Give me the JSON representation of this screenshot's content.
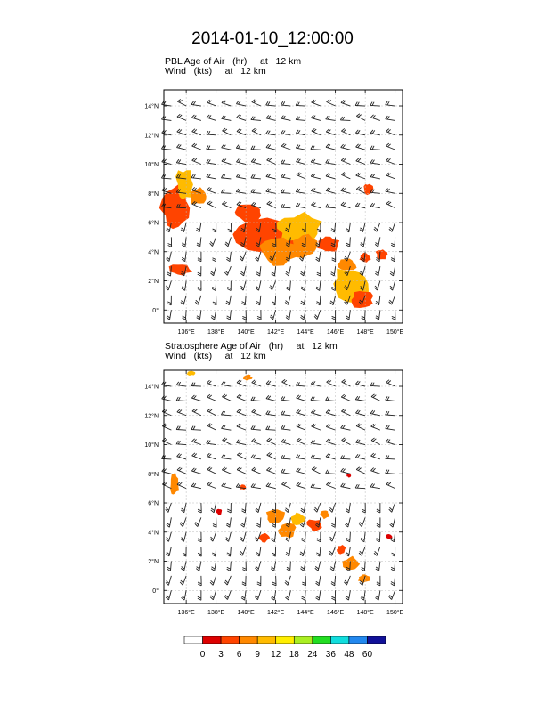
{
  "figure": {
    "title": "2014-01-10_12:00:00"
  },
  "panels": [
    {
      "title_line1": "PBL Age of Air   (hr)     at   12 km",
      "title_line2": "Wind   (kts)     at   12 km"
    },
    {
      "title_line1": "Stratosphere Age of Air   (hr)     at   12 km",
      "title_line2": "Wind   (kts)     at   12 km"
    }
  ],
  "chart_data": {
    "type": "heatmap",
    "x_axis": {
      "range": [
        134.5,
        150.5
      ],
      "ticks": [
        136,
        138,
        140,
        142,
        144,
        146,
        148,
        150
      ],
      "tick_labels": [
        "136°E",
        "138°E",
        "140°E",
        "142°E",
        "144°E",
        "146°E",
        "148°E",
        "150°E"
      ]
    },
    "y_axis": {
      "range": [
        -0.9,
        15.1
      ],
      "ticks": [
        0,
        2,
        4,
        6,
        8,
        10,
        12,
        14
      ],
      "tick_labels": [
        "0°",
        "2°N",
        "4°N",
        "6°N",
        "8°N",
        "10°N",
        "12°N",
        "14°N"
      ]
    },
    "colorbar": {
      "levels": [
        "0",
        "3",
        "6",
        "9",
        "12",
        "18",
        "24",
        "36",
        "48",
        "60"
      ],
      "colors": [
        "#ffffff",
        "#dd0000",
        "#ff4400",
        "#ff8800",
        "#ffbb00",
        "#ffee00",
        "#aaee22",
        "#22dd22",
        "#11dddd",
        "#2288ee",
        "#111199"
      ]
    },
    "wind_field": {
      "units": "kts",
      "lon_step": 1.0,
      "lat_step": 1.0,
      "regime_boundary_lat": 6.5,
      "north_direction_deg": 285,
      "south_direction_deg": 190
    },
    "pbl_age_regions": [
      {
        "lon": 135.3,
        "lat": 7.0,
        "rlon": 1.0,
        "rlat": 1.6,
        "level": 2
      },
      {
        "lon": 135.9,
        "lat": 8.6,
        "rlon": 0.6,
        "rlat": 1.1,
        "level": 4
      },
      {
        "lon": 136.8,
        "lat": 7.8,
        "rlon": 0.6,
        "rlat": 0.6,
        "level": 3
      },
      {
        "lon": 135.6,
        "lat": 2.8,
        "rlon": 0.8,
        "rlat": 0.4,
        "level": 2
      },
      {
        "lon": 140.2,
        "lat": 6.7,
        "rlon": 1.0,
        "rlat": 0.6,
        "level": 2
      },
      {
        "lon": 142.0,
        "lat": 5.2,
        "rlon": 2.6,
        "rlat": 1.2,
        "level": 2
      },
      {
        "lon": 143.5,
        "lat": 5.6,
        "rlon": 1.6,
        "rlat": 1.0,
        "level": 4
      },
      {
        "lon": 142.2,
        "lat": 4.0,
        "rlon": 1.4,
        "rlat": 0.9,
        "level": 3
      },
      {
        "lon": 144.0,
        "lat": 4.4,
        "rlon": 1.0,
        "rlat": 0.9,
        "level": 3
      },
      {
        "lon": 145.5,
        "lat": 4.5,
        "rlon": 0.8,
        "rlat": 0.6,
        "level": 2
      },
      {
        "lon": 147.0,
        "lat": 1.8,
        "rlon": 1.3,
        "rlat": 1.2,
        "level": 4
      },
      {
        "lon": 147.8,
        "lat": 0.7,
        "rlon": 0.8,
        "rlat": 0.6,
        "level": 2
      },
      {
        "lon": 146.8,
        "lat": 3.1,
        "rlon": 0.6,
        "rlat": 0.4,
        "level": 3
      },
      {
        "lon": 148.2,
        "lat": 8.3,
        "rlon": 0.3,
        "rlat": 0.4,
        "level": 2
      },
      {
        "lon": 149.1,
        "lat": 3.8,
        "rlon": 0.4,
        "rlat": 0.4,
        "level": 2
      },
      {
        "lon": 148.0,
        "lat": 3.6,
        "rlon": 0.4,
        "rlat": 0.3,
        "level": 2
      }
    ],
    "strat_age_regions": [
      {
        "lon": 135.2,
        "lat": 7.3,
        "rlon": 0.3,
        "rlat": 0.9,
        "level": 3
      },
      {
        "lon": 136.3,
        "lat": 14.9,
        "rlon": 0.3,
        "rlat": 0.15,
        "level": 4
      },
      {
        "lon": 140.1,
        "lat": 14.6,
        "rlon": 0.3,
        "rlat": 0.2,
        "level": 3
      },
      {
        "lon": 138.2,
        "lat": 5.4,
        "rlon": 0.2,
        "rlat": 0.2,
        "level": 1
      },
      {
        "lon": 139.8,
        "lat": 7.1,
        "rlon": 0.2,
        "rlat": 0.2,
        "level": 2
      },
      {
        "lon": 142.0,
        "lat": 5.1,
        "rlon": 0.7,
        "rlat": 0.6,
        "level": 3
      },
      {
        "lon": 143.5,
        "lat": 4.9,
        "rlon": 0.5,
        "rlat": 0.4,
        "level": 4
      },
      {
        "lon": 142.8,
        "lat": 4.1,
        "rlon": 0.6,
        "rlat": 0.5,
        "level": 3
      },
      {
        "lon": 144.6,
        "lat": 4.5,
        "rlon": 0.5,
        "rlat": 0.4,
        "level": 2
      },
      {
        "lon": 145.3,
        "lat": 5.2,
        "rlon": 0.3,
        "rlat": 0.3,
        "level": 3
      },
      {
        "lon": 141.2,
        "lat": 3.6,
        "rlon": 0.4,
        "rlat": 0.3,
        "level": 2
      },
      {
        "lon": 147.0,
        "lat": 1.8,
        "rlon": 0.6,
        "rlat": 0.5,
        "level": 3
      },
      {
        "lon": 147.9,
        "lat": 0.8,
        "rlon": 0.4,
        "rlat": 0.3,
        "level": 3
      },
      {
        "lon": 146.4,
        "lat": 2.8,
        "rlon": 0.3,
        "rlat": 0.3,
        "level": 2
      },
      {
        "lon": 149.6,
        "lat": 3.7,
        "rlon": 0.2,
        "rlat": 0.2,
        "level": 1
      },
      {
        "lon": 146.9,
        "lat": 7.9,
        "rlon": 0.15,
        "rlat": 0.15,
        "level": 1
      }
    ]
  }
}
